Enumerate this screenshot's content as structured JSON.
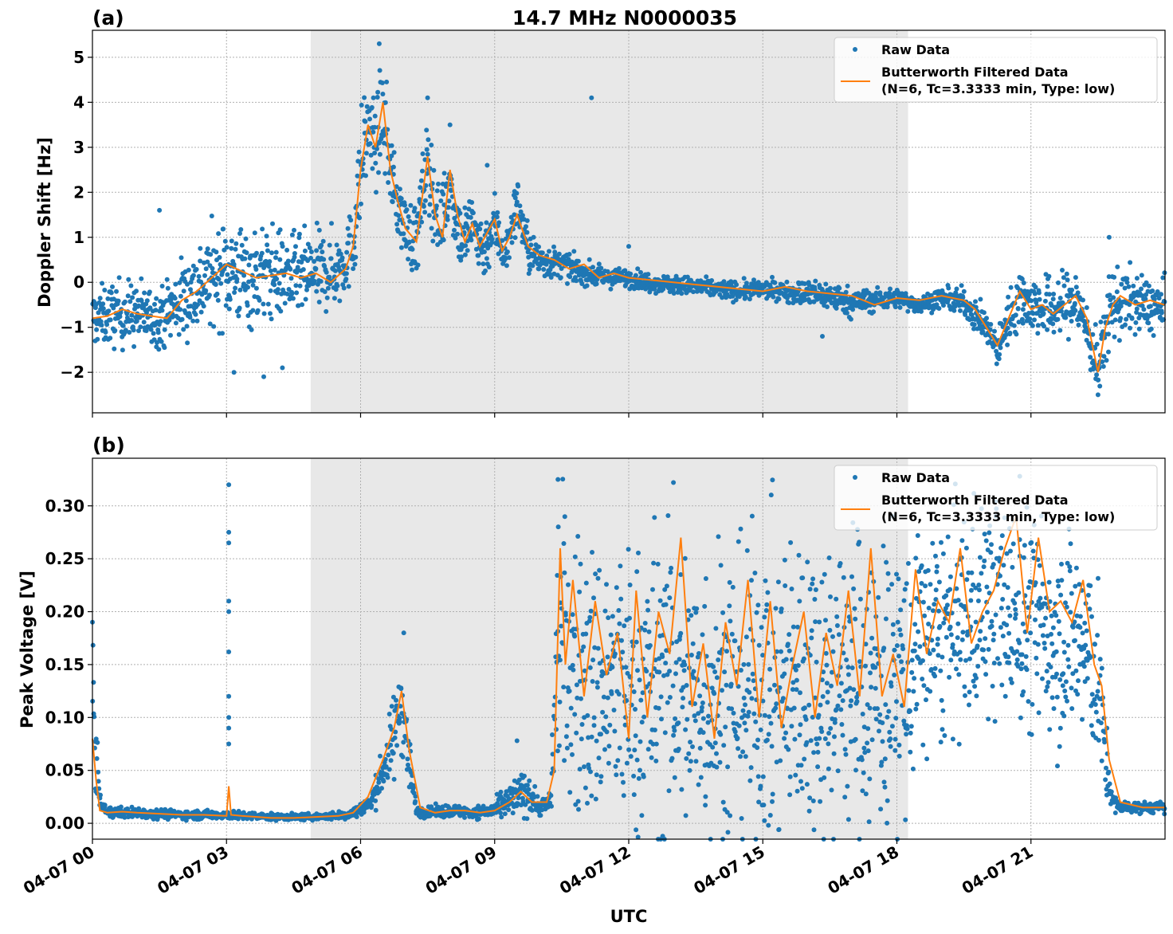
{
  "figure": {
    "title": "14.7 MHz N0000035",
    "xlabel": "UTC"
  },
  "chart_data": [
    {
      "type": "scatter",
      "panel_label": "(a)",
      "title": "14.7 MHz N0000035",
      "xlabel": "",
      "ylabel": "Doppler Shift [Hz]",
      "x_unit": "hours UTC on 04-07",
      "xlim": [
        "04-07 00:00",
        "04-08 00:00"
      ],
      "ylim": [
        -2.9,
        5.6
      ],
      "y_ticks": [
        -2,
        -1,
        0,
        1,
        2,
        3,
        4,
        5
      ],
      "y_tick_labels": [
        "−2",
        "−1",
        "0",
        "1",
        "2",
        "3",
        "4",
        "5"
      ],
      "grid": true,
      "legend_position": "top-right",
      "shaded_region": [
        "04-07 04:53",
        "04-07 18:15"
      ],
      "series": [
        {
          "name": "Raw Data",
          "kind": "points",
          "color": "#1f77b4",
          "x": [
            "00:00",
            "00:30",
            "01:00",
            "01:30",
            "02:00",
            "02:30",
            "03:00",
            "03:30",
            "04:00",
            "04:30",
            "05:00",
            "05:30",
            "05:50",
            "06:00",
            "06:10",
            "06:20",
            "06:30",
            "06:45",
            "07:00",
            "07:15",
            "07:30",
            "07:45",
            "08:00",
            "08:15",
            "08:30",
            "08:45",
            "09:00",
            "09:15",
            "09:30",
            "09:45",
            "10:00",
            "10:30",
            "11:00",
            "11:30",
            "12:00",
            "12:30",
            "13:00",
            "13:30",
            "14:00",
            "14:30",
            "15:00",
            "15:30",
            "16:00",
            "16:30",
            "17:00",
            "17:30",
            "18:00",
            "18:30",
            "19:00",
            "19:30",
            "20:00",
            "20:15",
            "20:30",
            "20:45",
            "21:00",
            "21:30",
            "22:00",
            "22:15",
            "22:30",
            "22:45",
            "23:00",
            "23:30",
            "23:59"
          ],
          "center": [
            -0.8,
            -0.7,
            -0.7,
            -0.8,
            -0.4,
            0.0,
            0.3,
            0.1,
            0.2,
            0.1,
            0.2,
            0.3,
            0.8,
            2.5,
            3.5,
            3.0,
            3.8,
            2.0,
            1.2,
            0.9,
            2.7,
            1.2,
            2.2,
            0.9,
            1.3,
            0.7,
            1.3,
            0.6,
            1.8,
            0.7,
            0.5,
            0.4,
            0.2,
            0.1,
            0.1,
            0.0,
            -0.05,
            -0.1,
            -0.15,
            -0.2,
            -0.15,
            -0.2,
            -0.25,
            -0.3,
            -0.45,
            -0.4,
            -0.35,
            -0.5,
            -0.35,
            -0.45,
            -1.0,
            -1.5,
            -0.8,
            -0.3,
            -0.5,
            -0.6,
            -0.4,
            -1.0,
            -2.0,
            -0.6,
            -0.4,
            -0.5,
            -0.6
          ],
          "spread": [
            0.6,
            0.7,
            0.7,
            0.6,
            0.9,
            1.0,
            1.1,
            1.1,
            1.0,
            0.9,
            0.9,
            0.8,
            0.8,
            1.2,
            1.1,
            0.9,
            1.1,
            0.8,
            0.7,
            0.8,
            1.0,
            0.8,
            0.8,
            0.7,
            0.8,
            0.6,
            0.7,
            0.5,
            0.6,
            0.5,
            0.4,
            0.3,
            0.25,
            0.2,
            0.2,
            0.2,
            0.2,
            0.2,
            0.2,
            0.2,
            0.2,
            0.2,
            0.3,
            0.3,
            0.3,
            0.25,
            0.2,
            0.2,
            0.2,
            0.3,
            0.35,
            0.4,
            0.5,
            0.7,
            0.6,
            0.7,
            0.7,
            0.6,
            0.7,
            0.8,
            0.8,
            0.6,
            0.6
          ],
          "outliers": [
            [
              "01:30",
              1.6
            ],
            [
              "03:10",
              -2.0
            ],
            [
              "03:50",
              -2.1
            ],
            [
              "04:15",
              -1.9
            ],
            [
              "06:25",
              5.3
            ],
            [
              "07:30",
              4.1
            ],
            [
              "08:00",
              3.5
            ],
            [
              "08:50",
              2.6
            ],
            [
              "11:10",
              4.1
            ],
            [
              "12:00",
              0.8
            ],
            [
              "16:20",
              -1.2
            ],
            [
              "22:30",
              -2.5
            ],
            [
              "22:45",
              1.0
            ]
          ]
        },
        {
          "name": "Butterworth Filtered Data\n(N=6, Tc=3.3333 min, Type: low)",
          "name_lines": [
            "Butterworth Filtered Data",
            "(N=6, Tc=3.3333 min, Type: low)"
          ],
          "kind": "line",
          "color": "#ff7f0e",
          "x": [
            "00:00",
            "00:20",
            "00:40",
            "01:00",
            "01:20",
            "01:40",
            "02:00",
            "02:20",
            "02:40",
            "03:00",
            "03:20",
            "03:40",
            "04:00",
            "04:20",
            "04:40",
            "05:00",
            "05:20",
            "05:40",
            "05:50",
            "06:00",
            "06:10",
            "06:20",
            "06:30",
            "06:40",
            "06:50",
            "07:00",
            "07:15",
            "07:30",
            "07:40",
            "07:50",
            "08:00",
            "08:10",
            "08:20",
            "08:30",
            "08:40",
            "08:50",
            "09:00",
            "09:10",
            "09:20",
            "09:30",
            "09:45",
            "10:00",
            "10:20",
            "10:40",
            "11:00",
            "11:20",
            "11:40",
            "12:00",
            "12:30",
            "13:00",
            "13:30",
            "14:00",
            "14:30",
            "15:00",
            "15:30",
            "16:00",
            "16:30",
            "17:00",
            "17:30",
            "18:00",
            "18:30",
            "19:00",
            "19:30",
            "19:45",
            "20:00",
            "20:15",
            "20:30",
            "20:45",
            "21:00",
            "21:15",
            "21:30",
            "21:45",
            "22:00",
            "22:15",
            "22:30",
            "22:40",
            "22:50",
            "23:00",
            "23:20",
            "23:40",
            "23:59"
          ],
          "y": [
            -0.8,
            -0.75,
            -0.6,
            -0.7,
            -0.75,
            -0.8,
            -0.4,
            -0.2,
            0.1,
            0.4,
            0.25,
            0.1,
            0.15,
            0.2,
            0.1,
            0.2,
            0.0,
            0.3,
            0.8,
            2.5,
            3.5,
            3.0,
            4.0,
            2.5,
            1.8,
            1.2,
            0.9,
            2.8,
            1.5,
            1.0,
            2.5,
            1.5,
            0.9,
            1.3,
            0.8,
            1.1,
            1.4,
            0.7,
            1.0,
            1.5,
            0.8,
            0.6,
            0.5,
            0.3,
            0.4,
            0.1,
            0.2,
            0.1,
            0.05,
            0.0,
            -0.05,
            -0.1,
            -0.15,
            -0.2,
            -0.1,
            -0.2,
            -0.25,
            -0.3,
            -0.5,
            -0.35,
            -0.4,
            -0.3,
            -0.4,
            -0.6,
            -1.0,
            -1.4,
            -0.8,
            -0.2,
            -0.6,
            -0.5,
            -0.7,
            -0.5,
            -0.3,
            -0.8,
            -2.0,
            -1.0,
            -0.5,
            -0.3,
            -0.5,
            -0.4,
            -0.5
          ]
        }
      ]
    },
    {
      "type": "scatter",
      "panel_label": "(b)",
      "title": "",
      "xlabel": "UTC",
      "ylabel": "Peak Voltage [V]",
      "x_unit": "hours UTC on 04-07",
      "xlim": [
        "04-07 00:00",
        "04-08 00:00"
      ],
      "ylim": [
        -0.015,
        0.345
      ],
      "y_ticks": [
        0.0,
        0.05,
        0.1,
        0.15,
        0.2,
        0.25,
        0.3
      ],
      "y_tick_labels": [
        "0.00",
        "0.05",
        "0.10",
        "0.15",
        "0.20",
        "0.25",
        "0.30"
      ],
      "x_ticks": [
        "00:00",
        "03:00",
        "06:00",
        "09:00",
        "12:00",
        "15:00",
        "18:00",
        "21:00"
      ],
      "x_tick_labels": [
        "04-07 00",
        "04-07 03",
        "04-07 06",
        "04-07 09",
        "04-07 12",
        "04-07 15",
        "04-07 18",
        "04-07 21"
      ],
      "grid": true,
      "legend_position": "top-right",
      "shaded_region": [
        "04-07 04:53",
        "04-07 18:15"
      ],
      "series": [
        {
          "name": "Raw Data",
          "kind": "points",
          "color": "#1f77b4",
          "x": [
            "00:00",
            "00:05",
            "00:10",
            "00:20",
            "00:30",
            "01:00",
            "02:00",
            "03:00",
            "04:00",
            "05:00",
            "05:45",
            "06:15",
            "06:30",
            "06:45",
            "06:55",
            "07:05",
            "07:15",
            "07:30",
            "08:00",
            "08:30",
            "09:00",
            "09:30",
            "09:45",
            "10:00",
            "10:15",
            "10:25",
            "10:35",
            "10:50",
            "11:00",
            "11:30",
            "12:00",
            "12:30",
            "13:00",
            "13:30",
            "14:00",
            "14:30",
            "15:00",
            "15:30",
            "16:00",
            "16:30",
            "17:00",
            "17:30",
            "18:00",
            "18:15",
            "18:30",
            "19:00",
            "19:30",
            "20:00",
            "20:30",
            "21:00",
            "21:30",
            "22:00",
            "22:15",
            "22:30",
            "22:40",
            "22:50",
            "23:00",
            "23:30",
            "23:59"
          ],
          "center": [
            0.13,
            0.07,
            0.02,
            0.01,
            0.01,
            0.01,
            0.008,
            0.008,
            0.006,
            0.006,
            0.008,
            0.02,
            0.05,
            0.08,
            0.12,
            0.06,
            0.012,
            0.01,
            0.012,
            0.01,
            0.012,
            0.025,
            0.03,
            0.015,
            0.02,
            0.18,
            0.16,
            0.14,
            0.13,
            0.13,
            0.12,
            0.13,
            0.13,
            0.12,
            0.13,
            0.12,
            0.13,
            0.12,
            0.14,
            0.13,
            0.14,
            0.13,
            0.14,
            0.13,
            0.17,
            0.18,
            0.19,
            0.21,
            0.2,
            0.19,
            0.18,
            0.18,
            0.16,
            0.14,
            0.06,
            0.02,
            0.015,
            0.015,
            0.015
          ],
          "spread": [
            0.06,
            0.05,
            0.005,
            0.005,
            0.005,
            0.005,
            0.004,
            0.004,
            0.003,
            0.003,
            0.004,
            0.01,
            0.02,
            0.04,
            0.05,
            0.03,
            0.005,
            0.005,
            0.006,
            0.005,
            0.008,
            0.02,
            0.02,
            0.008,
            0.01,
            0.13,
            0.14,
            0.13,
            0.13,
            0.13,
            0.13,
            0.14,
            0.14,
            0.13,
            0.14,
            0.13,
            0.14,
            0.14,
            0.14,
            0.14,
            0.14,
            0.14,
            0.14,
            0.13,
            0.1,
            0.1,
            0.1,
            0.1,
            0.1,
            0.1,
            0.1,
            0.1,
            0.1,
            0.08,
            0.04,
            0.008,
            0.006,
            0.005,
            0.005
          ],
          "outliers": [
            [
              "00:00",
              0.19
            ],
            [
              "03:03",
              0.32
            ],
            [
              "03:03",
              0.275
            ],
            [
              "03:03",
              0.265
            ],
            [
              "03:03",
              0.21
            ],
            [
              "03:03",
              0.2
            ],
            [
              "03:03",
              0.162
            ],
            [
              "03:03",
              0.12
            ],
            [
              "03:03",
              0.1
            ],
            [
              "03:03",
              0.09
            ],
            [
              "03:03",
              0.075
            ],
            [
              "06:58",
              0.18
            ],
            [
              "09:30",
              0.078
            ],
            [
              "10:25",
              0.325
            ],
            [
              "13:00",
              0.322
            ],
            [
              "20:45",
              0.328
            ]
          ]
        },
        {
          "name": "Butterworth Filtered Data\n(N=6, Tc=3.3333 min, Type: low)",
          "name_lines": [
            "Butterworth Filtered Data",
            "(N=6, Tc=3.3333 min, Type: low)"
          ],
          "kind": "line",
          "color": "#ff7f0e",
          "x": [
            "00:00",
            "00:05",
            "00:10",
            "00:20",
            "00:40",
            "01:00",
            "01:30",
            "02:00",
            "02:30",
            "03:00",
            "03:03",
            "03:06",
            "03:20",
            "04:00",
            "04:30",
            "05:00",
            "05:30",
            "05:50",
            "06:10",
            "06:30",
            "06:45",
            "06:55",
            "07:05",
            "07:20",
            "07:40",
            "08:00",
            "08:20",
            "08:40",
            "09:00",
            "09:20",
            "09:35",
            "09:50",
            "10:10",
            "10:20",
            "10:28",
            "10:35",
            "10:45",
            "11:00",
            "11:15",
            "11:30",
            "11:45",
            "12:00",
            "12:10",
            "12:25",
            "12:40",
            "12:55",
            "13:10",
            "13:25",
            "13:40",
            "13:55",
            "14:10",
            "14:25",
            "14:40",
            "14:55",
            "15:10",
            "15:25",
            "15:40",
            "15:55",
            "16:10",
            "16:25",
            "16:40",
            "16:55",
            "17:10",
            "17:25",
            "17:40",
            "17:55",
            "18:10",
            "18:25",
            "18:40",
            "18:55",
            "19:10",
            "19:25",
            "19:40",
            "19:55",
            "20:10",
            "20:25",
            "20:40",
            "20:55",
            "21:10",
            "21:25",
            "21:40",
            "21:55",
            "22:10",
            "22:25",
            "22:35",
            "22:45",
            "23:00",
            "23:30",
            "23:59"
          ],
          "y": [
            0.08,
            0.04,
            0.012,
            0.01,
            0.011,
            0.01,
            0.009,
            0.008,
            0.008,
            0.007,
            0.035,
            0.008,
            0.007,
            0.005,
            0.005,
            0.006,
            0.007,
            0.01,
            0.025,
            0.06,
            0.09,
            0.125,
            0.07,
            0.015,
            0.01,
            0.012,
            0.012,
            0.01,
            0.012,
            0.02,
            0.03,
            0.02,
            0.02,
            0.05,
            0.26,
            0.15,
            0.23,
            0.12,
            0.21,
            0.14,
            0.18,
            0.08,
            0.22,
            0.1,
            0.2,
            0.16,
            0.27,
            0.11,
            0.17,
            0.08,
            0.19,
            0.13,
            0.23,
            0.1,
            0.21,
            0.09,
            0.15,
            0.2,
            0.1,
            0.18,
            0.13,
            0.22,
            0.12,
            0.26,
            0.12,
            0.16,
            0.11,
            0.24,
            0.16,
            0.21,
            0.19,
            0.26,
            0.17,
            0.2,
            0.22,
            0.26,
            0.29,
            0.18,
            0.27,
            0.2,
            0.21,
            0.19,
            0.23,
            0.15,
            0.13,
            0.06,
            0.02,
            0.015,
            0.015
          ]
        }
      ]
    }
  ]
}
